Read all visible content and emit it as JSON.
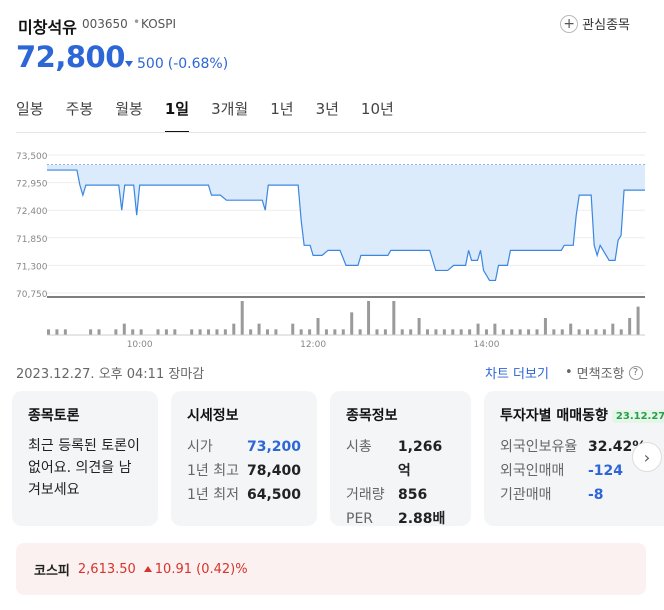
{
  "header": {
    "name": "미창석유",
    "code": "003650",
    "separator": "•",
    "market": "KOSPI",
    "fav_label": "관심종목"
  },
  "quote": {
    "price": "72,800",
    "change": "500",
    "change_pct": "(-0.68%)",
    "direction": "down"
  },
  "tabs": [
    "일봉",
    "주봉",
    "월봉",
    "1일",
    "3개월",
    "1년",
    "3년",
    "10년"
  ],
  "active_tab": "1일",
  "chart_data": {
    "type": "area",
    "y_ticks": [
      "73,500",
      "72,950",
      "72,400",
      "71,850",
      "71,300",
      "70,750"
    ],
    "ylim": [
      70750,
      73500
    ],
    "x_ticks": [
      "10:00",
      "12:00",
      "14:00"
    ],
    "reference_line": 73300,
    "price_series": [
      [
        0.0,
        73200
      ],
      [
        0.05,
        73200
      ],
      [
        0.055,
        72900
      ],
      [
        0.06,
        72700
      ],
      [
        0.065,
        72900
      ],
      [
        0.1,
        72900
      ],
      [
        0.12,
        72900
      ],
      [
        0.125,
        72400
      ],
      [
        0.13,
        72900
      ],
      [
        0.145,
        72900
      ],
      [
        0.15,
        72300
      ],
      [
        0.155,
        72900
      ],
      [
        0.27,
        72900
      ],
      [
        0.275,
        72700
      ],
      [
        0.29,
        72700
      ],
      [
        0.3,
        72600
      ],
      [
        0.36,
        72600
      ],
      [
        0.365,
        72400
      ],
      [
        0.37,
        72900
      ],
      [
        0.4,
        72900
      ],
      [
        0.42,
        72900
      ],
      [
        0.425,
        72200
      ],
      [
        0.43,
        71700
      ],
      [
        0.44,
        71700
      ],
      [
        0.445,
        71500
      ],
      [
        0.46,
        71500
      ],
      [
        0.47,
        71600
      ],
      [
        0.49,
        71600
      ],
      [
        0.5,
        71300
      ],
      [
        0.52,
        71300
      ],
      [
        0.525,
        71500
      ],
      [
        0.57,
        71500
      ],
      [
        0.575,
        71600
      ],
      [
        0.64,
        71600
      ],
      [
        0.65,
        71200
      ],
      [
        0.67,
        71200
      ],
      [
        0.68,
        71300
      ],
      [
        0.7,
        71300
      ],
      [
        0.705,
        71600
      ],
      [
        0.71,
        71400
      ],
      [
        0.72,
        71400
      ],
      [
        0.725,
        71600
      ],
      [
        0.73,
        71200
      ],
      [
        0.74,
        71000
      ],
      [
        0.75,
        71000
      ],
      [
        0.755,
        71300
      ],
      [
        0.77,
        71300
      ],
      [
        0.775,
        71600
      ],
      [
        0.86,
        71600
      ],
      [
        0.865,
        71700
      ],
      [
        0.88,
        71700
      ],
      [
        0.885,
        72300
      ],
      [
        0.89,
        72700
      ],
      [
        0.91,
        72700
      ],
      [
        0.915,
        71700
      ],
      [
        0.92,
        71500
      ],
      [
        0.925,
        71700
      ],
      [
        0.93,
        71600
      ],
      [
        0.935,
        71500
      ],
      [
        0.94,
        71400
      ],
      [
        0.95,
        71400
      ],
      [
        0.955,
        71800
      ],
      [
        0.96,
        71900
      ],
      [
        0.965,
        72800
      ],
      [
        1.0,
        72800
      ]
    ],
    "volume_series": [
      1,
      1,
      1,
      0,
      0,
      1,
      1,
      0,
      1,
      2,
      1,
      1,
      0,
      1,
      1,
      1,
      0,
      1,
      1,
      1,
      1,
      1,
      2,
      6,
      1,
      2,
      1,
      1,
      0,
      2,
      1,
      1,
      3,
      1,
      1,
      1,
      4,
      1,
      6,
      1,
      1,
      6,
      1,
      1,
      3,
      1,
      1,
      1,
      1,
      1,
      1,
      2,
      1,
      2,
      1,
      1,
      1,
      1,
      1,
      3,
      1,
      1,
      2,
      1,
      1,
      1,
      1,
      2,
      1,
      3,
      5
    ]
  },
  "timestamp": "2023.12.27. 오후 04:11 장마감",
  "links": {
    "chart_more": "차트 더보기",
    "separator": "•",
    "disclaimer": "면책조항",
    "help": "?"
  },
  "cards": {
    "discussion": {
      "title": "종목토론",
      "text": "최근 등록된 토론이 없어요. 의견을 남겨보세요"
    },
    "market_info": {
      "title": "시세정보",
      "rows": [
        {
          "label": "시가",
          "value": "73,200"
        },
        {
          "label": "1년 최고",
          "value": "78,400"
        },
        {
          "label": "1년 최저",
          "value": "64,500"
        }
      ]
    },
    "stock_info": {
      "title": "종목정보",
      "rows": [
        {
          "label": "시총",
          "value": "1,266억"
        },
        {
          "label": "거래량",
          "value": "856"
        },
        {
          "label": "PER",
          "value": "2.88배"
        }
      ]
    },
    "investor": {
      "title": "투자자별 매매동향",
      "date": "23.12.27",
      "rows": [
        {
          "label": "외국인보유율",
          "value": "32.42%"
        },
        {
          "label": "외국인매매",
          "value": "-124"
        },
        {
          "label": "기관매매",
          "value": "-8"
        }
      ]
    }
  },
  "kospi": {
    "name": "코스피",
    "value": "2,613.50",
    "change": "10.91 (0.42)%",
    "direction": "up"
  }
}
